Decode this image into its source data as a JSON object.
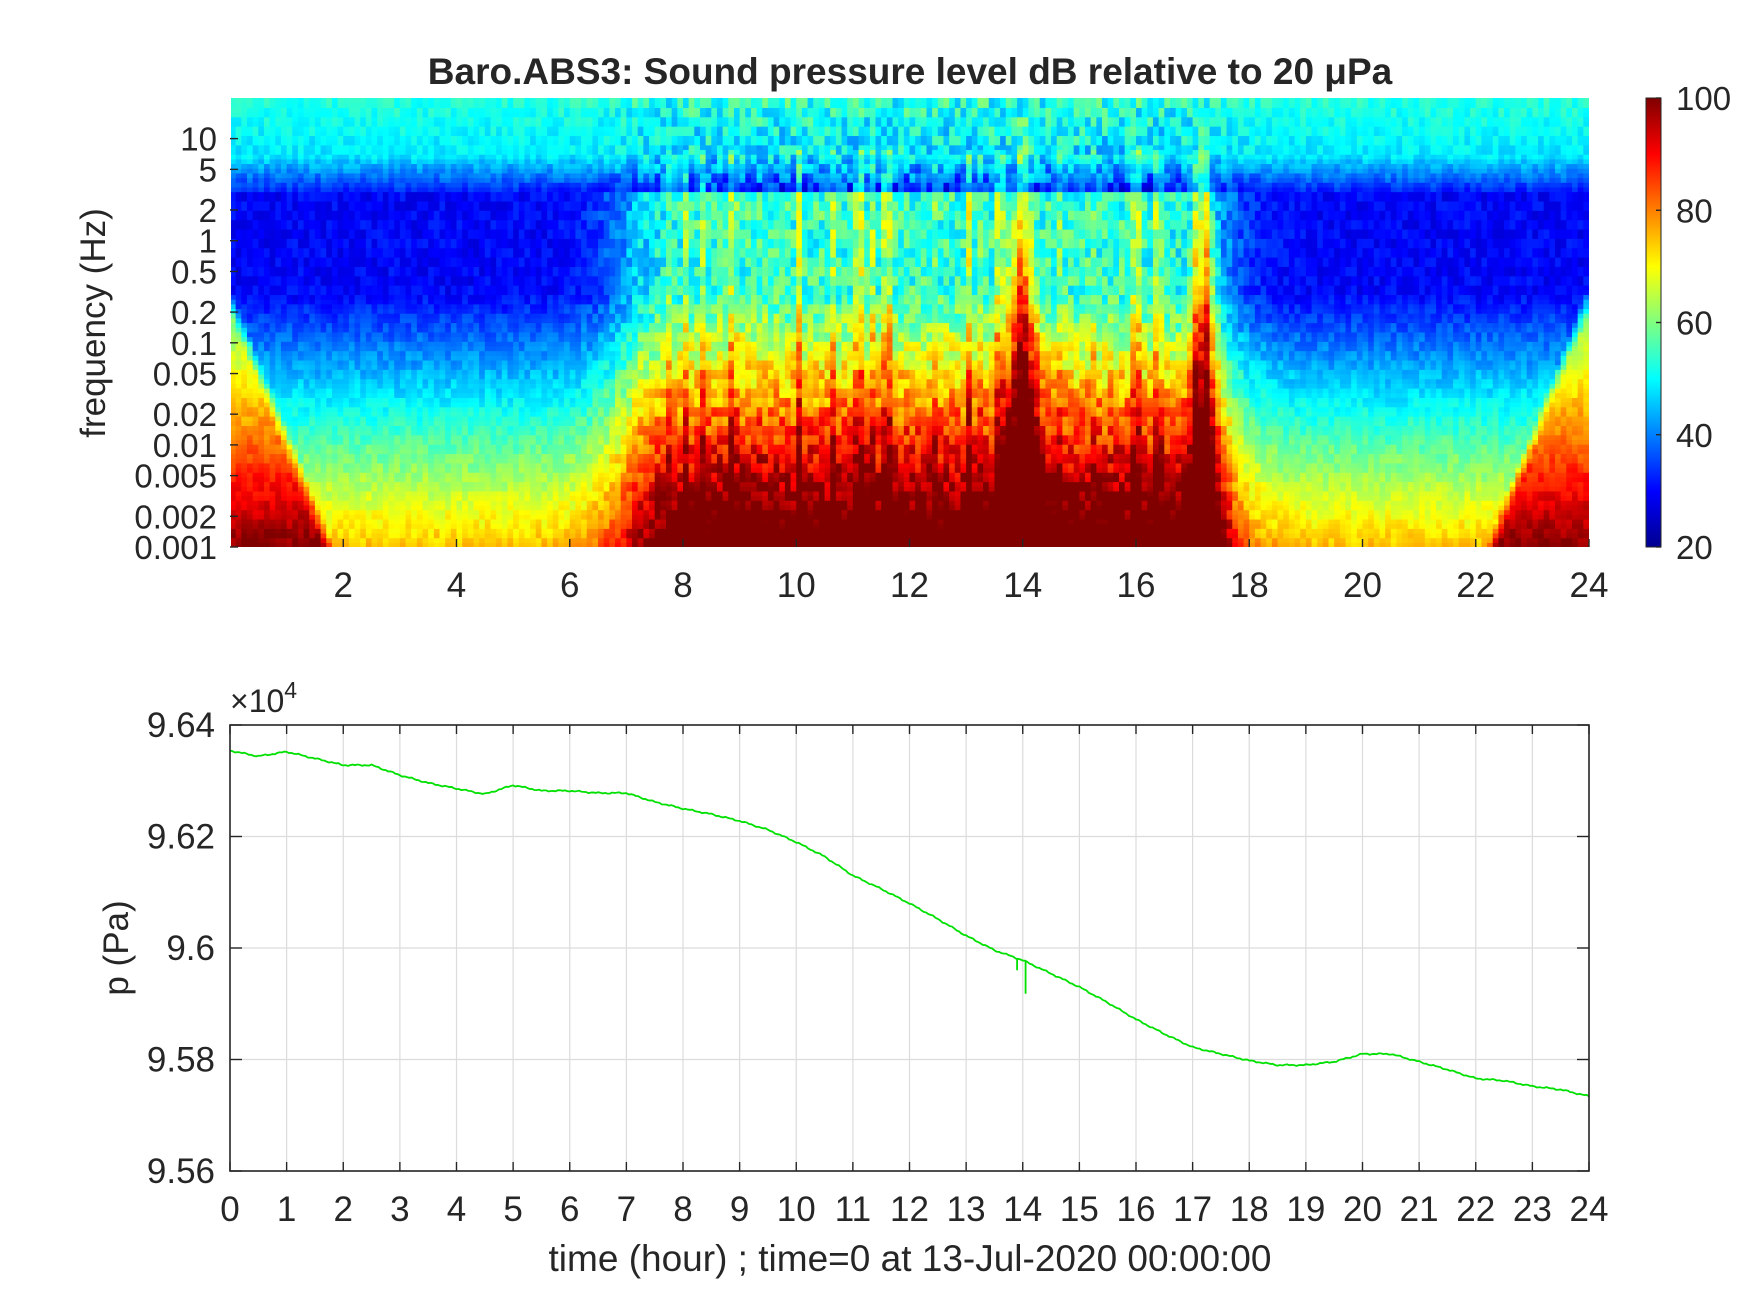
{
  "chart_data": [
    {
      "type": "heatmap",
      "title": "Baro.ABS3: Sound pressure level dB relative to 20 μPa",
      "xlabel": "",
      "ylabel": "frequency (Hz)",
      "x_ticks": [
        2,
        4,
        6,
        8,
        10,
        12,
        14,
        16,
        18,
        20,
        22,
        24
      ],
      "x_tick_labels": [
        "2",
        "4",
        "6",
        "8",
        "10",
        "12",
        "14",
        "16",
        "18",
        "20",
        "22",
        "24"
      ],
      "xlim": [
        0,
        24
      ],
      "y_scale": "log",
      "ylim": [
        0.001,
        25
      ],
      "y_ticks": [
        0.001,
        0.002,
        0.005,
        0.01,
        0.02,
        0.05,
        0.1,
        0.2,
        0.5,
        1,
        2,
        5,
        10
      ],
      "y_tick_labels": [
        "0.001",
        "0.002",
        "0.005",
        "0.01",
        "0.02",
        "0.05",
        "0.1",
        "0.2",
        "0.5",
        "1",
        "2",
        "5",
        "10"
      ],
      "colormap": "jet",
      "colorbar": {
        "range": [
          20,
          100
        ],
        "ticks": [
          20,
          40,
          60,
          80,
          100
        ],
        "tick_labels": [
          "20",
          "40",
          "60",
          "80",
          "100"
        ]
      },
      "features": {
        "active_period_hours": [
          7,
          17.5
        ],
        "strong_events_hours": [
          14.0,
          17.2
        ]
      }
    },
    {
      "type": "line",
      "title": "",
      "xlabel": "time (hour) ; time=0 at 13-Jul-2020 00:00:00",
      "ylabel": "p (Pa)",
      "exponent_label": "×10",
      "exponent_power": "4",
      "xlim": [
        0,
        24
      ],
      "ylim": [
        95600,
        96400
      ],
      "grid": true,
      "x_ticks": [
        0,
        1,
        2,
        3,
        4,
        5,
        6,
        7,
        8,
        9,
        10,
        11,
        12,
        13,
        14,
        15,
        16,
        17,
        18,
        19,
        20,
        21,
        22,
        23,
        24
      ],
      "x_tick_labels": [
        "0",
        "1",
        "2",
        "3",
        "4",
        "5",
        "6",
        "7",
        "8",
        "9",
        "10",
        "11",
        "12",
        "13",
        "14",
        "15",
        "16",
        "17",
        "18",
        "19",
        "20",
        "21",
        "22",
        "23",
        "24"
      ],
      "y_ticks": [
        95600,
        95800,
        96000,
        96200,
        96400
      ],
      "y_tick_labels": [
        "9.56",
        "9.58",
        "9.6",
        "9.62",
        "9.64"
      ],
      "line_color": "#00e000",
      "series": [
        {
          "x": [
            0,
            0.5,
            1,
            1.5,
            2,
            2.5,
            3,
            3.5,
            4,
            4.5,
            5,
            5.5,
            6,
            6.5,
            7,
            7.5,
            8,
            8.5,
            9,
            9.5,
            10,
            10.5,
            11,
            11.5,
            12,
            12.5,
            13,
            13.5,
            14,
            14.5,
            15,
            15.5,
            16,
            16.5,
            17,
            17.5,
            18,
            18.5,
            19,
            19.5,
            20,
            20.5,
            21,
            21.5,
            22,
            22.5,
            23,
            23.5,
            24
          ],
          "y": [
            96354,
            96344,
            96352,
            96340,
            96328,
            96328,
            96310,
            96296,
            96286,
            96276,
            96292,
            96282,
            96282,
            96278,
            96278,
            96262,
            96250,
            96240,
            96228,
            96212,
            96190,
            96164,
            96130,
            96106,
            96080,
            96052,
            96022,
            95996,
            95978,
            95954,
            95930,
            95902,
            95872,
            95846,
            95822,
            95810,
            95798,
            95790,
            95790,
            95796,
            95810,
            95810,
            95796,
            95782,
            95766,
            95762,
            95752,
            95746,
            95734
          ]
        }
      ],
      "spikes": [
        {
          "x": 14.05,
          "y": 95918
        },
        {
          "x": 13.9,
          "y": 95960
        },
        {
          "x": 17.1,
          "y": 95820
        }
      ]
    }
  ]
}
